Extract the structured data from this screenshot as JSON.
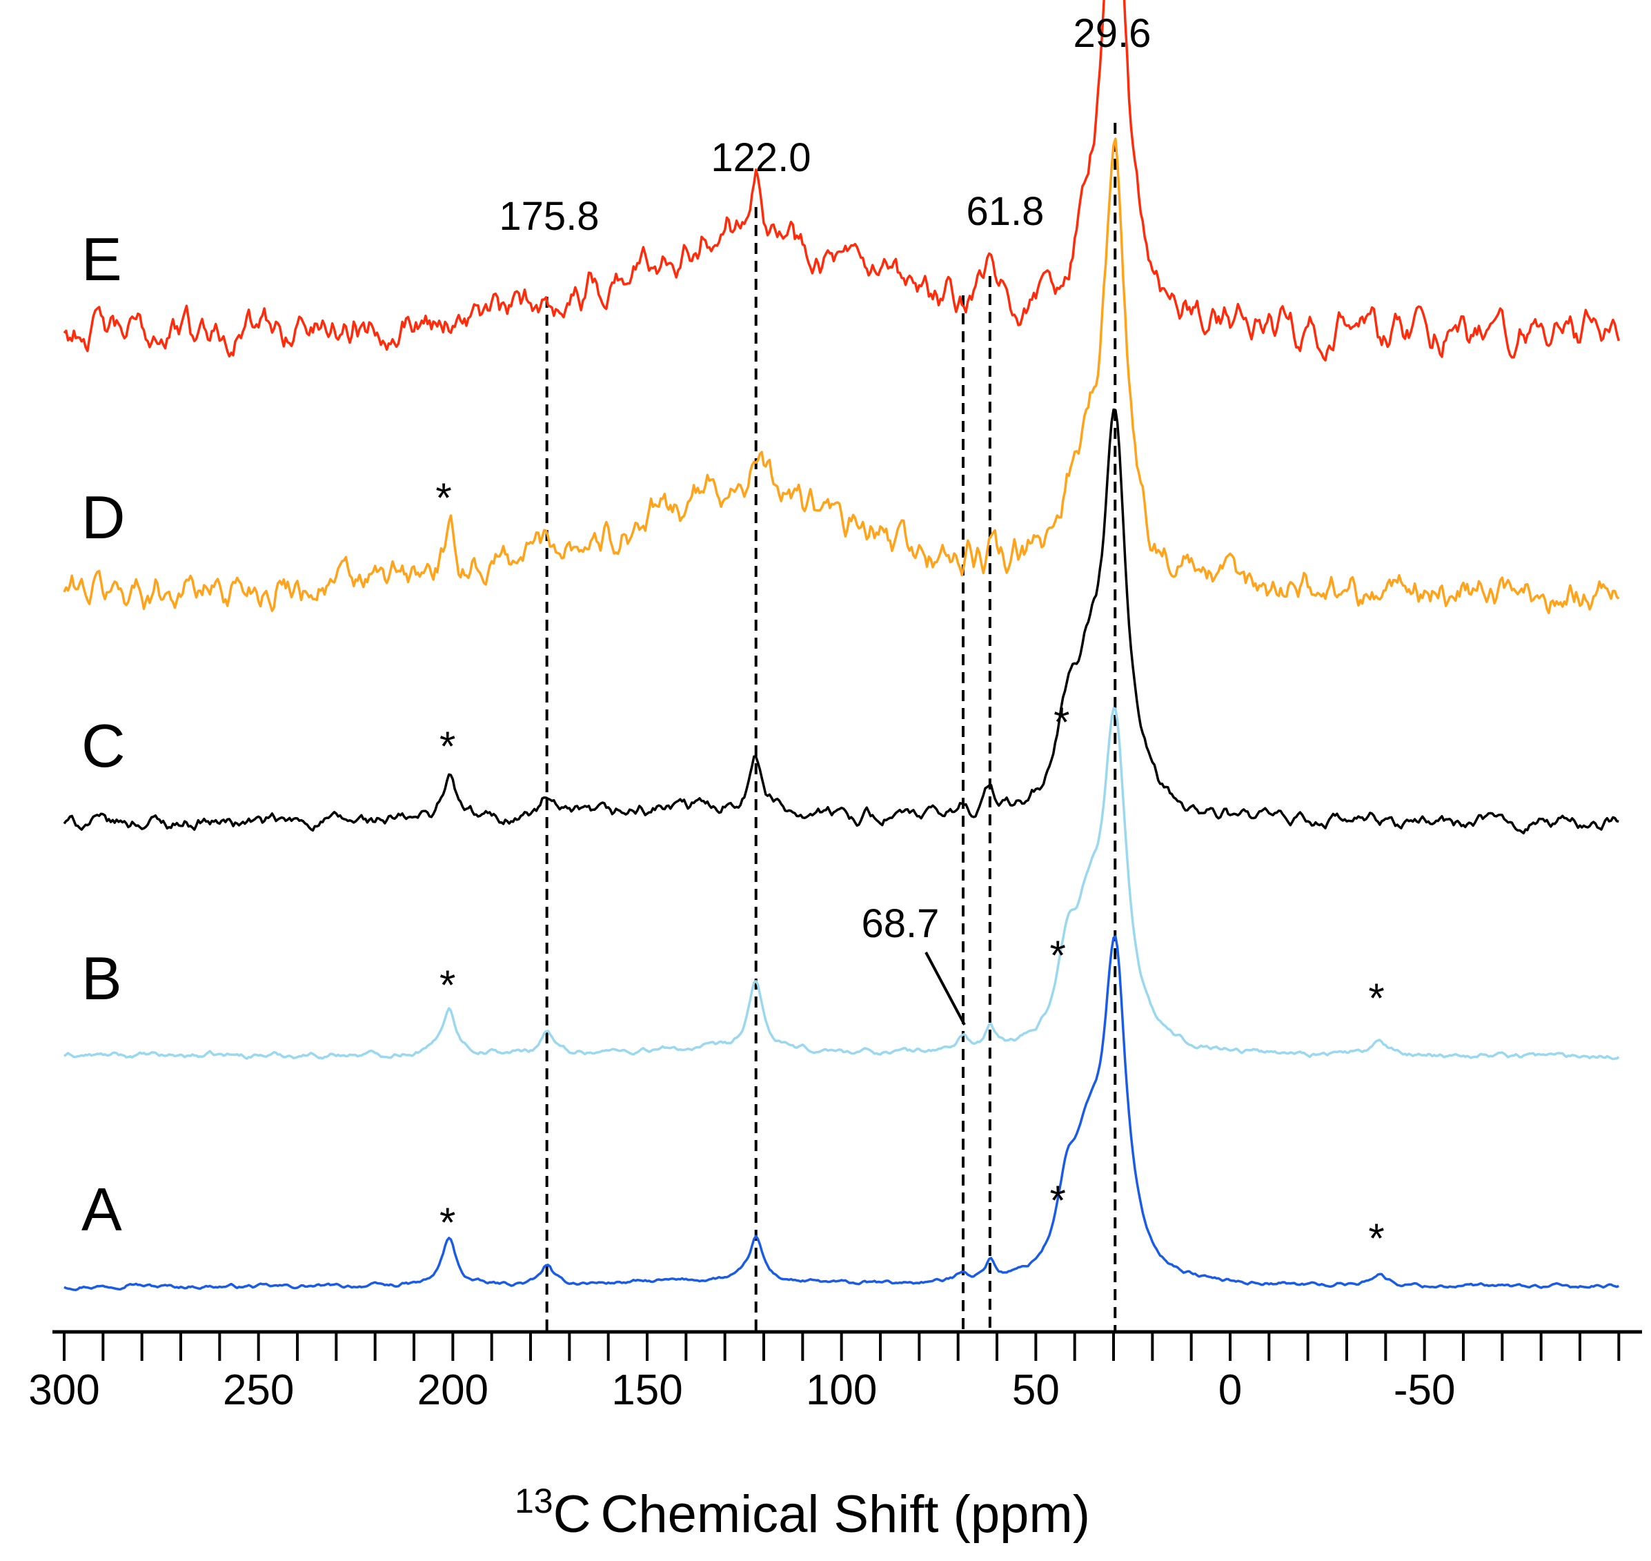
{
  "chart_data": {
    "type": "line",
    "title": "",
    "xlabel": "Chemical Shift (ppm)",
    "xlabel_isotope": "13",
    "xlabel_element": "C",
    "ylabel": "",
    "xlim": [
      300,
      -100
    ],
    "x_reversed": true,
    "grid": false,
    "ticks": [
      300,
      250,
      200,
      150,
      100,
      50,
      0,
      -50
    ],
    "tick_labels": [
      "300",
      "250",
      "200",
      "150",
      "100",
      "50",
      "0",
      "-50"
    ],
    "series": [
      {
        "name": "A",
        "label": "A",
        "color": "#1a5ce6",
        "noise": 0.35,
        "width": 3.5,
        "peaks": [
          [
            29.6,
            160,
            3.5
          ],
          [
            36.5,
            55,
            4.5
          ],
          [
            42,
            35,
            3
          ],
          [
            201,
            24,
            2.2
          ],
          [
            175.8,
            10,
            1.8
          ],
          [
            122,
            22,
            2.2
          ],
          [
            61.8,
            10,
            1.4
          ],
          [
            68.7,
            5,
            1.8
          ],
          [
            -38,
            6,
            2.5
          ],
          [
            283,
            2,
            2
          ],
          [
            135,
            3,
            30
          ]
        ]
      },
      {
        "name": "B",
        "label": "B",
        "color": "#9ad8f0",
        "noise": 0.5,
        "width": 3.5,
        "peaks": [
          [
            29.6,
            160,
            3.5
          ],
          [
            36.5,
            55,
            4.5
          ],
          [
            42,
            35,
            3
          ],
          [
            201,
            24,
            2.2
          ],
          [
            175.8,
            12,
            1.8
          ],
          [
            122,
            35,
            2.2
          ],
          [
            61.8,
            10,
            1.4
          ],
          [
            68.7,
            7,
            1.8
          ],
          [
            -38,
            6,
            2.5
          ],
          [
            135,
            3,
            30
          ]
        ]
      },
      {
        "name": "C",
        "label": "C",
        "color": "#000000",
        "noise": 1.2,
        "width": 3.5,
        "peaks": [
          [
            29.6,
            190,
            3.5
          ],
          [
            36.5,
            55,
            4.5
          ],
          [
            42,
            35,
            3
          ],
          [
            201,
            22,
            2.2
          ],
          [
            175.8,
            10,
            1.8
          ],
          [
            122,
            25,
            2.2
          ],
          [
            61.8,
            13,
            1.5
          ],
          [
            68.7,
            5,
            1.8
          ],
          [
            135,
            8,
            30
          ]
        ]
      },
      {
        "name": "D",
        "label": "D",
        "color": "#ffa31a",
        "noise": 3.2,
        "width": 3.5,
        "peaks": [
          [
            29.6,
            200,
            3.5
          ],
          [
            36.5,
            45,
            4.5
          ],
          [
            42,
            20,
            3
          ],
          [
            201,
            15,
            2.2
          ],
          [
            122,
            12,
            2.2
          ],
          [
            61.8,
            6,
            1.5
          ],
          [
            175.8,
            10,
            8
          ],
          [
            125,
            55,
            35
          ]
        ]
      },
      {
        "name": "E",
        "label": "E",
        "color": "#ff2c0c",
        "noise": 3.2,
        "width": 3.5,
        "peaks": [
          [
            29.6,
            230,
            3.5
          ],
          [
            36.5,
            30,
            4.5
          ],
          [
            122,
            40,
            1.6
          ],
          [
            61.8,
            25,
            1.5
          ],
          [
            125,
            55,
            35
          ]
        ]
      }
    ],
    "dashed_lines_ppm": [
      175.8,
      122.0,
      68.7,
      61.8,
      29.6
    ],
    "peak_labels": [
      {
        "text": "29.6",
        "ppm": 29.6
      },
      {
        "text": "122.0",
        "ppm": 122.0
      },
      {
        "text": "175.8",
        "ppm": 175.8
      },
      {
        "text": "61.8",
        "ppm": 61.8
      },
      {
        "text": "68.7",
        "ppm": 68.7
      }
    ],
    "spinning_sidebands": [
      {
        "series": "D",
        "ppm": 202
      },
      {
        "series": "C",
        "ppm": 201
      },
      {
        "series": "C",
        "ppm": 43
      },
      {
        "series": "B",
        "ppm": 201
      },
      {
        "series": "B",
        "ppm": 44
      },
      {
        "series": "B",
        "ppm": -38
      },
      {
        "series": "A",
        "ppm": 201
      },
      {
        "series": "A",
        "ppm": 44
      },
      {
        "series": "A",
        "ppm": -38
      }
    ],
    "sideband_marker": "*"
  }
}
